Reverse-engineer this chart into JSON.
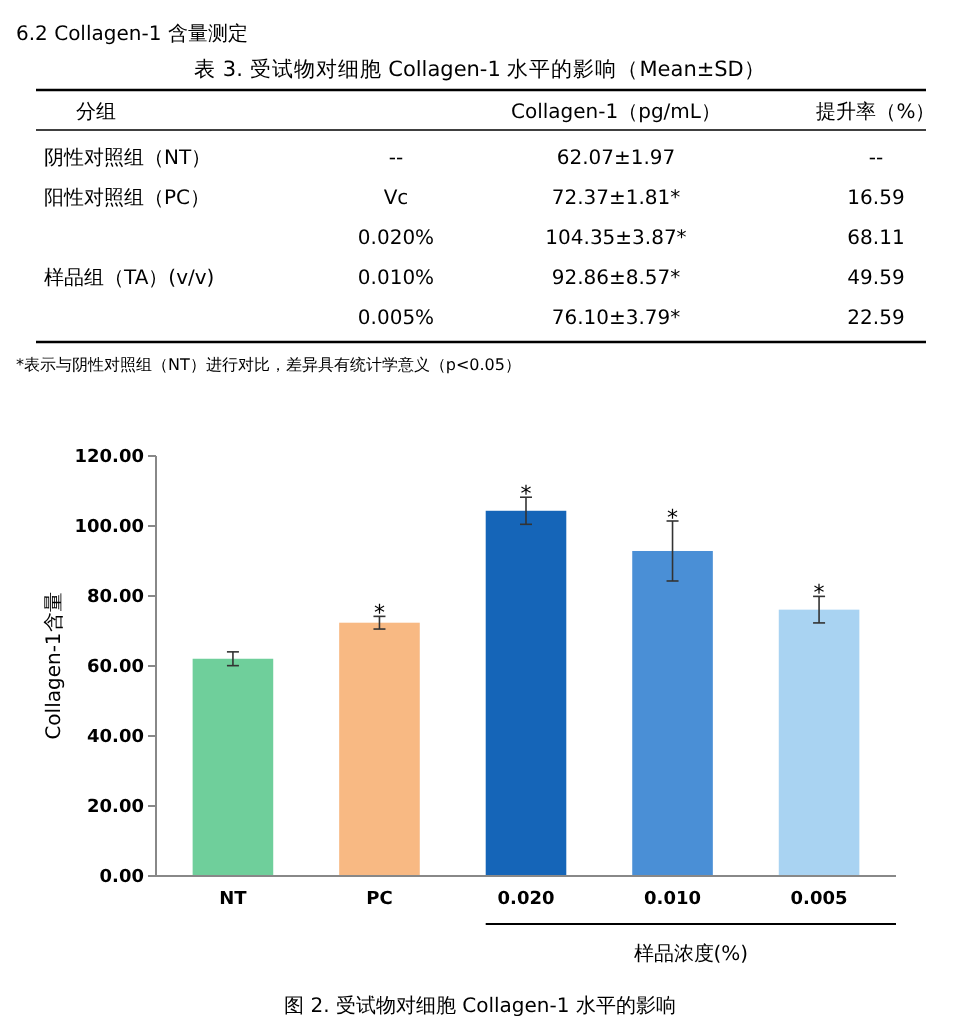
{
  "chart_data": [
    {
      "type": "other",
      "title": "表 3. 受试物对细胞 Collagen-1 水平的影响（Mean±SD）",
      "categories": [
        "分组",
        null,
        "Collagen-1（pg/mL）",
        "提升率（%）"
      ],
      "cell_labels": [
        [
          "阴性对照组（NT）",
          "--",
          "62.07±1.97",
          "--"
        ],
        [
          "阳性对照组（PC）",
          "Vc",
          "72.37±1.81*",
          "16.59"
        ],
        [
          null,
          "0.020%",
          "104.35±3.87*",
          "68.11"
        ],
        [
          "样品组（TA）(v/v)",
          "0.010%",
          "92.86±8.57*",
          "49.59"
        ],
        [
          null,
          "0.005%",
          "76.10±3.79*",
          "22.59"
        ]
      ],
      "annotations": [
        "6.2 Collagen-1 含量测定",
        "*表示与阴性对照组（NT）进行对比，差异具有统计学意义（p<0.05）"
      ]
    },
    {
      "type": "bar",
      "title": "图 2. 受试物对细胞 Collagen-1 水平的影响",
      "ylabel": "Collagen-1含量",
      "xlabel": "样品浓度(%)",
      "categories": [
        "NT",
        "PC",
        "0.020",
        "0.010",
        "0.005"
      ],
      "values": [
        62.07,
        72.37,
        104.35,
        92.86,
        76.1
      ],
      "errors": [
        1.97,
        1.81,
        3.87,
        8.57,
        3.79
      ],
      "colors": [
        "#6fcf9b",
        "#f8b983",
        "#1565b8",
        "#4a8fd6",
        "#a9d3f2"
      ],
      "ylim": [
        0,
        120
      ],
      "yticks": [
        {
          "value": 0,
          "label": "0.00"
        },
        {
          "value": 20,
          "label": "20.00"
        },
        {
          "value": 40,
          "label": "40.00"
        },
        {
          "value": 60,
          "label": "60.00"
        },
        {
          "value": 80,
          "label": "80.00"
        },
        {
          "value": 100,
          "label": "100.00"
        },
        {
          "value": 120,
          "label": "120.00"
        }
      ],
      "annotations": [
        {
          "text": "*",
          "x": "PC",
          "y": 74.2
        },
        {
          "text": "*",
          "x": "0.020",
          "y": 108.2
        },
        {
          "text": "*",
          "x": "0.010",
          "y": 101.4
        },
        {
          "text": "*",
          "x": "0.005",
          "y": 79.9
        }
      ]
    }
  ]
}
